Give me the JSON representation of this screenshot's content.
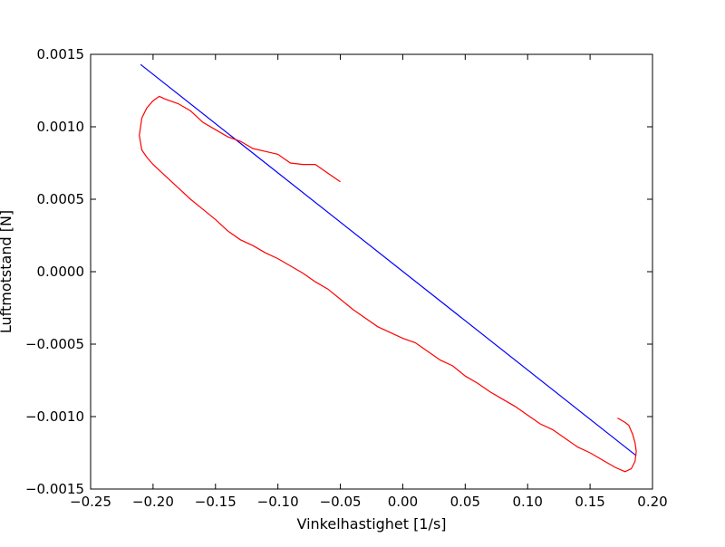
{
  "chart_data": {
    "type": "line",
    "title": "",
    "xlabel": "Vinkelhastighet [1/s]",
    "ylabel": "Luftmotstand [N]",
    "xlim": [
      -0.25,
      0.2
    ],
    "ylim": [
      -0.0015,
      0.0015
    ],
    "x_ticks": [
      -0.25,
      -0.2,
      -0.15,
      -0.1,
      -0.05,
      0.0,
      0.05,
      0.1,
      0.15,
      0.2
    ],
    "x_tick_labels": [
      "−0.25",
      "−0.20",
      "−0.15",
      "−0.10",
      "−0.05",
      "0.00",
      "0.05",
      "0.10",
      "0.15",
      "0.20"
    ],
    "y_ticks": [
      -0.0015,
      -0.001,
      -0.0005,
      0.0,
      0.0005,
      0.001,
      0.0015
    ],
    "y_tick_labels": [
      "−0.0015",
      "−0.0010",
      "−0.0005",
      "0.0000",
      "0.0005",
      "0.0010",
      "0.0015"
    ],
    "grid": false,
    "legend": "none",
    "series": [
      {
        "color": "#0000ff",
        "x": [
          -0.21,
          0.187
        ],
        "y": [
          0.00143,
          -0.00127
        ]
      },
      {
        "color": "#ff0000",
        "x": [
          0.172,
          0.178,
          0.181,
          0.184,
          0.186,
          0.187,
          0.186,
          0.183,
          0.178,
          0.17,
          0.16,
          0.15,
          0.14,
          0.13,
          0.12,
          0.11,
          0.1,
          0.09,
          0.08,
          0.07,
          0.06,
          0.05,
          0.04,
          0.03,
          0.02,
          0.01,
          0.0,
          -0.01,
          -0.02,
          -0.03,
          -0.04,
          -0.05,
          -0.06,
          -0.07,
          -0.08,
          -0.09,
          -0.1,
          -0.11,
          -0.12,
          -0.13,
          -0.14,
          -0.15,
          -0.16,
          -0.17,
          -0.18,
          -0.19,
          -0.2,
          -0.205,
          -0.209,
          -0.211,
          -0.209,
          -0.205,
          -0.2,
          -0.195,
          -0.19,
          -0.18,
          -0.17,
          -0.16,
          -0.15,
          -0.14,
          -0.13,
          -0.12,
          -0.11,
          -0.1,
          -0.09,
          -0.08,
          -0.07,
          -0.06,
          -0.05
        ],
        "y": [
          -0.00101,
          -0.00104,
          -0.00106,
          -0.00112,
          -0.00118,
          -0.00124,
          -0.00131,
          -0.00136,
          -0.00138,
          -0.00135,
          -0.0013,
          -0.00125,
          -0.00121,
          -0.00115,
          -0.00109,
          -0.00105,
          -0.00099,
          -0.00093,
          -0.00088,
          -0.00083,
          -0.00077,
          -0.00072,
          -0.00065,
          -0.00061,
          -0.00055,
          -0.00049,
          -0.00046,
          -0.00042,
          -0.00038,
          -0.00032,
          -0.00026,
          -0.00019,
          -0.00012,
          -7e-05,
          -1e-05,
          4e-05,
          9e-05,
          0.00013,
          0.00018,
          0.00022,
          0.00028,
          0.00036,
          0.00043,
          0.0005,
          0.00058,
          0.00066,
          0.00074,
          0.00079,
          0.00084,
          0.00094,
          0.00106,
          0.00113,
          0.00118,
          0.00121,
          0.00119,
          0.00116,
          0.00111,
          0.00103,
          0.00098,
          0.00093,
          0.0009,
          0.00085,
          0.00083,
          0.00081,
          0.00075,
          0.00074,
          0.00074,
          0.00068,
          0.00062
        ]
      }
    ]
  }
}
